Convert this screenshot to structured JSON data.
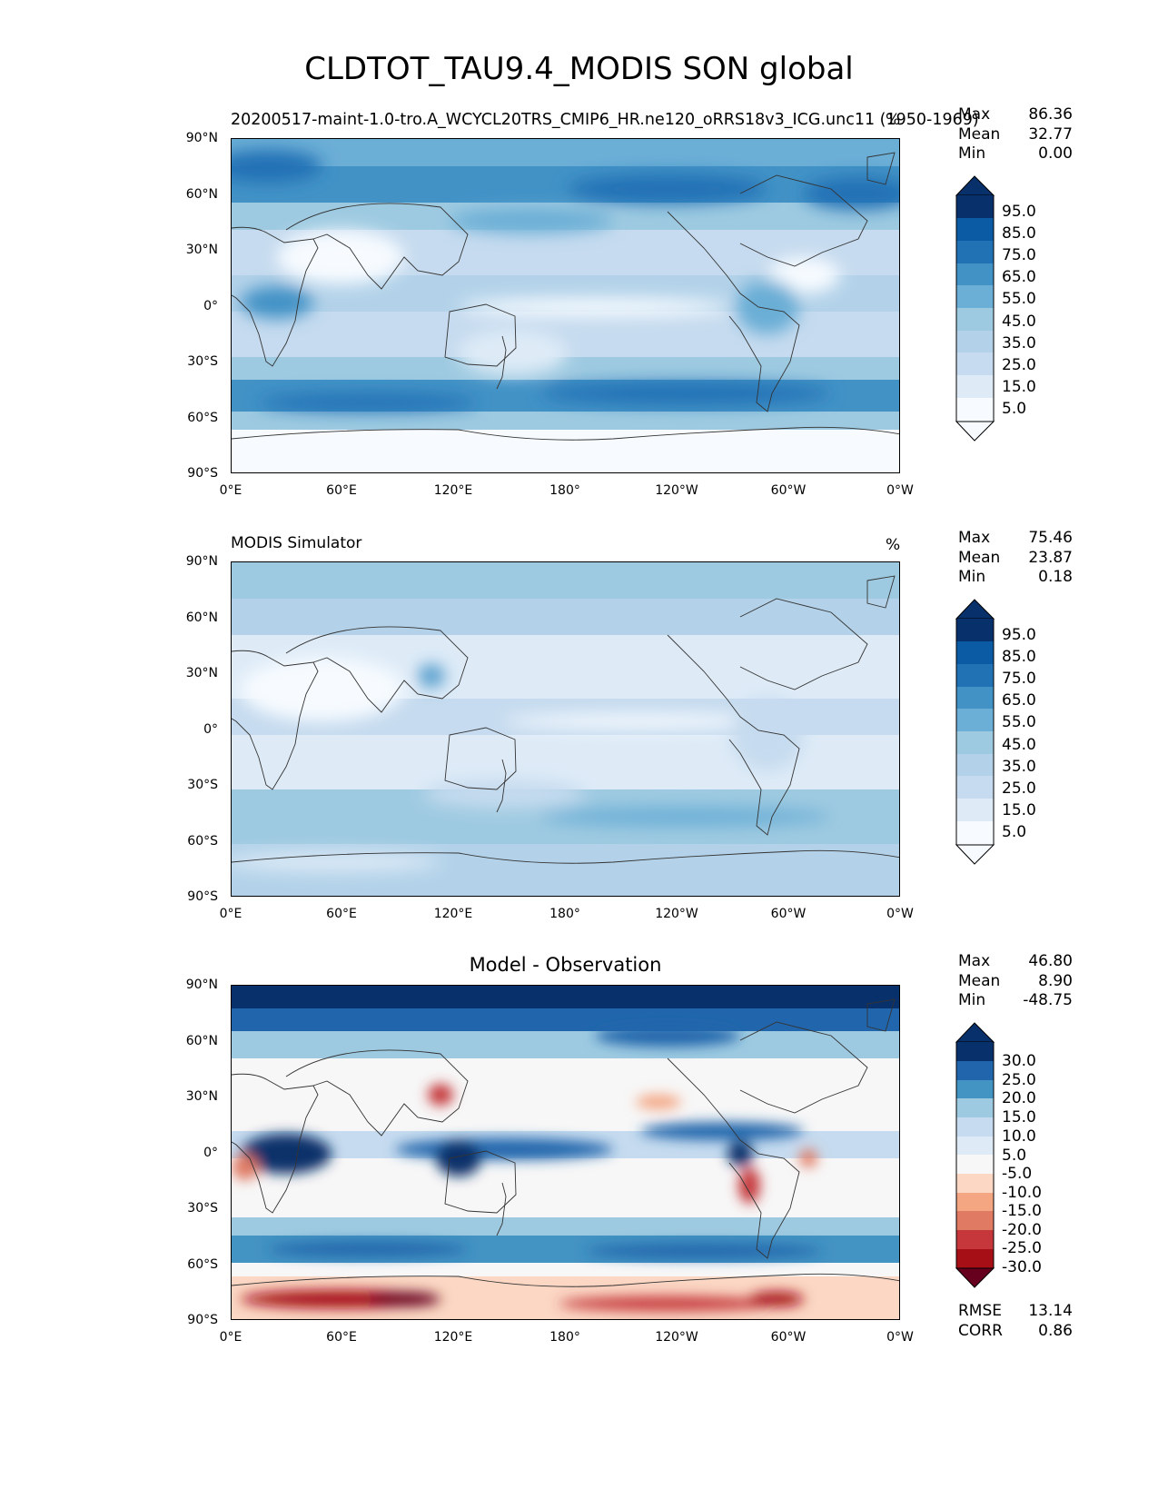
{
  "figure_title": "CLDTOT_TAU9.4_MODIS SON global",
  "lat_ticks": [
    "90°N",
    "60°N",
    "30°N",
    "0°",
    "30°S",
    "60°S",
    "90°S"
  ],
  "lon_ticks": [
    "0°E",
    "60°E",
    "120°E",
    "180°",
    "120°W",
    "60°W",
    "0°W"
  ],
  "palettes": {
    "blues": [
      "#f7fbff",
      "#deebf7",
      "#c6dbef",
      "#b3d2e9",
      "#9ecae1",
      "#6baed6",
      "#4292c6",
      "#2171b5",
      "#0b5aa4",
      "#08306b"
    ],
    "diff": [
      "#67001f",
      "#a50f15",
      "#c5373b",
      "#e07a63",
      "#f4a582",
      "#fbd7c4",
      "#f7f7f7",
      "#deebf7",
      "#c6dbef",
      "#9ecae1",
      "#4393c3",
      "#2166ac",
      "#08306b"
    ]
  },
  "panels": [
    {
      "id": "model",
      "left_title": "20200517-maint-1.0-tro.A_WCYCL20TRS_CMIP6_HR.ne120_oRRS18v3_ICG.unc11 (1950-1969)",
      "center_title": "",
      "units": "%",
      "stats": [
        {
          "label": "Max",
          "value": "86.36"
        },
        {
          "label": "Mean",
          "value": "32.77"
        },
        {
          "label": "Min",
          "value": "0.00"
        }
      ],
      "colorbar_labels": [
        "95.0",
        "85.0",
        "75.0",
        "65.0",
        "55.0",
        "45.0",
        "35.0",
        "25.0",
        "15.0",
        "5.0"
      ]
    },
    {
      "id": "obs",
      "left_title": "MODIS Simulator",
      "center_title": "",
      "units": "%",
      "stats": [
        {
          "label": "Max",
          "value": "75.46"
        },
        {
          "label": "Mean",
          "value": "23.87"
        },
        {
          "label": "Min",
          "value": "0.18"
        }
      ],
      "colorbar_labels": [
        "95.0",
        "85.0",
        "75.0",
        "65.0",
        "55.0",
        "45.0",
        "35.0",
        "25.0",
        "15.0",
        "5.0"
      ]
    },
    {
      "id": "diff",
      "left_title": "",
      "center_title": "Model - Observation",
      "units": "",
      "stats": [
        {
          "label": "Max",
          "value": "46.80"
        },
        {
          "label": "Mean",
          "value": "8.90"
        },
        {
          "label": "Min",
          "value": "-48.75"
        }
      ],
      "colorbar_labels": [
        "30.0",
        "25.0",
        "20.0",
        "15.0",
        "10.0",
        "5.0",
        "-5.0",
        "-10.0",
        "-15.0",
        "-20.0",
        "-25.0",
        "-30.0"
      ],
      "extra_stats": [
        {
          "label": "RMSE",
          "value": "13.14"
        },
        {
          "label": "CORR",
          "value": "0.86"
        }
      ]
    }
  ]
}
